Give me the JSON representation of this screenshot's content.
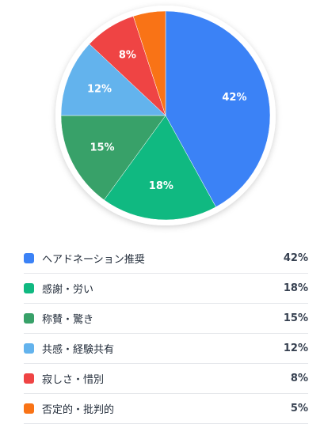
{
  "chart_data": {
    "type": "pie",
    "categories": [
      "ヘアドネーション推奨",
      "感謝・労い",
      "称賛・驚き",
      "共感・経験共有",
      "寂しさ・惜別",
      "否定的・批判的"
    ],
    "values": [
      42,
      18,
      15,
      12,
      8,
      5
    ],
    "labels": [
      "42%",
      "18%",
      "15%",
      "12%",
      "8%",
      "5%"
    ],
    "colors": [
      "#3b82f6",
      "#10b981",
      "#38a169",
      "#63b3ed",
      "#ef4444",
      "#f97316"
    ],
    "show_slice_label": [
      true,
      true,
      true,
      true,
      true,
      false
    ],
    "legend_placement": "bottom"
  }
}
